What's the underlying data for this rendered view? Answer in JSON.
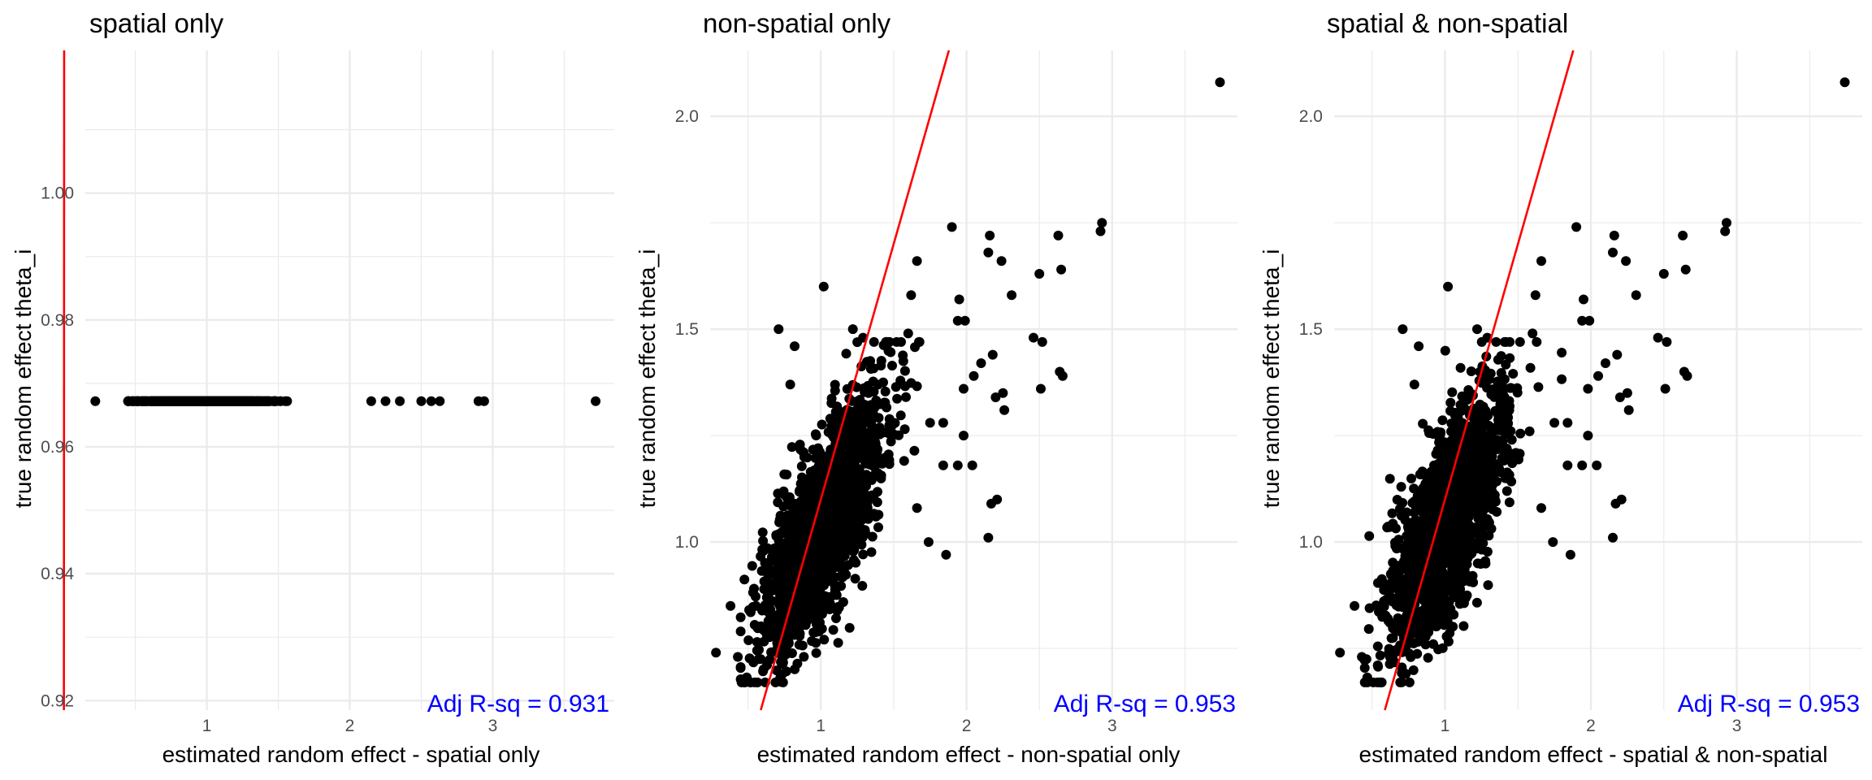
{
  "colors": {
    "points": "#000000",
    "reference_line": "#ff0000",
    "annotation": "#0000ff",
    "grid": "#ebebeb"
  },
  "chart_data": [
    {
      "type": "scatter",
      "title": "spatial only",
      "xlabel": "estimated random effect - spatial only",
      "ylabel": "true random effect theta_i",
      "annotation": "Adj R-sq = 0.931",
      "xlim": [
        0.15,
        3.85
      ],
      "ylim": [
        0.9185,
        1.0225
      ],
      "xticks": [
        1,
        2,
        3
      ],
      "yticks": [
        0.92,
        0.94,
        0.96,
        0.98,
        1.0
      ],
      "ytick_labels": [
        "0.92",
        "0.94",
        "0.96",
        "0.98",
        "1.00"
      ],
      "reference_line": {
        "slope": 54.9,
        "intercept": 0.9134
      },
      "outlier_points": [
        [
          0.22,
          0.9672
        ],
        [
          2.15,
          0.9672
        ],
        [
          2.25,
          0.9672
        ],
        [
          2.35,
          0.9672
        ],
        [
          2.5,
          0.9672
        ],
        [
          2.57,
          0.9672
        ],
        [
          2.63,
          0.9672
        ],
        [
          2.9,
          0.9672
        ],
        [
          2.94,
          0.9672
        ],
        [
          3.72,
          0.9672
        ]
      ],
      "point_cloud": {
        "n": 1000,
        "x_mean": 1.0,
        "x_sd": 0.22,
        "x_min": 0.45,
        "x_max": 2.05,
        "y_mean": 0.9672,
        "y_sd": 0.0,
        "y_min": 0.9672,
        "y_max": 0.9672,
        "corr": 0.0
      },
      "grid": true
    },
    {
      "type": "scatter",
      "title": "non-spatial only",
      "xlabel": "estimated random effect - non-spatial only",
      "ylabel": "true random effect theta_i",
      "annotation": "Adj R-sq = 0.953",
      "xlim": [
        0.24,
        3.86
      ],
      "ylim": [
        0.605,
        2.155
      ],
      "xticks": [
        1,
        2,
        3
      ],
      "yticks": [
        1.0,
        1.5,
        2.0
      ],
      "ytick_labels": [
        "1.0",
        "1.5",
        "2.0"
      ],
      "reference_line": {
        "slope": 1.2,
        "intercept": -0.1
      },
      "outlier_points": [
        [
          3.74,
          2.08
        ],
        [
          2.93,
          1.75
        ],
        [
          2.92,
          1.73
        ],
        [
          2.63,
          1.72
        ],
        [
          1.9,
          1.74
        ],
        [
          2.16,
          1.72
        ],
        [
          2.15,
          1.68
        ],
        [
          2.24,
          1.66
        ],
        [
          1.66,
          1.66
        ],
        [
          2.65,
          1.64
        ],
        [
          2.5,
          1.63
        ],
        [
          2.31,
          1.58
        ],
        [
          2.46,
          1.48
        ],
        [
          2.52,
          1.47
        ],
        [
          2.64,
          1.4
        ],
        [
          2.66,
          1.39
        ],
        [
          2.18,
          1.44
        ],
        [
          2.1,
          1.42
        ],
        [
          2.05,
          1.39
        ],
        [
          2.2,
          1.34
        ],
        [
          2.26,
          1.31
        ],
        [
          2.51,
          1.36
        ],
        [
          1.98,
          1.36
        ],
        [
          1.98,
          1.25
        ],
        [
          1.94,
          1.18
        ],
        [
          2.04,
          1.18
        ],
        [
          2.21,
          1.1
        ],
        [
          2.17,
          1.09
        ],
        [
          2.15,
          1.01
        ],
        [
          1.86,
          0.97
        ],
        [
          1.84,
          1.18
        ],
        [
          1.94,
          1.52
        ],
        [
          1.99,
          1.52
        ],
        [
          1.95,
          1.57
        ],
        [
          1.62,
          1.58
        ],
        [
          1.6,
          1.49
        ],
        [
          1.22,
          1.5
        ],
        [
          1.02,
          1.6
        ],
        [
          0.71,
          1.5
        ],
        [
          0.79,
          1.37
        ],
        [
          0.82,
          1.46
        ],
        [
          1.29,
          1.48
        ],
        [
          0.28,
          0.74
        ],
        [
          0.38,
          0.85
        ],
        [
          0.43,
          0.73
        ],
        [
          1.66,
          1.08
        ],
        [
          1.75,
          1.28
        ],
        [
          1.84,
          1.28
        ],
        [
          2.25,
          1.35
        ],
        [
          1.74,
          1.0
        ]
      ],
      "point_cloud": {
        "n": 1600,
        "x_mean": 1.02,
        "x_sd": 0.21,
        "x_min": 0.45,
        "x_max": 1.8,
        "y_mean": 1.04,
        "y_sd": 0.155,
        "y_min": 0.67,
        "y_max": 1.47,
        "corr": 0.72
      },
      "grid": true
    },
    {
      "type": "scatter",
      "title": "spatial & non-spatial",
      "xlabel": "estimated random effect - spatial & non-spatial",
      "ylabel": "true random effect theta_i",
      "annotation": "Adj R-sq = 0.953",
      "xlim": [
        0.24,
        3.86
      ],
      "ylim": [
        0.605,
        2.155
      ],
      "xticks": [
        1,
        2,
        3
      ],
      "yticks": [
        1.0,
        1.5,
        2.0
      ],
      "ytick_labels": [
        "1.0",
        "1.5",
        "2.0"
      ],
      "reference_line": {
        "slope": 1.2,
        "intercept": -0.1
      },
      "outlier_points": [
        [
          3.74,
          2.08
        ],
        [
          2.93,
          1.75
        ],
        [
          2.92,
          1.73
        ],
        [
          2.63,
          1.72
        ],
        [
          1.9,
          1.74
        ],
        [
          2.16,
          1.72
        ],
        [
          2.15,
          1.68
        ],
        [
          2.24,
          1.66
        ],
        [
          1.66,
          1.66
        ],
        [
          2.65,
          1.64
        ],
        [
          2.5,
          1.63
        ],
        [
          2.31,
          1.58
        ],
        [
          2.46,
          1.48
        ],
        [
          2.52,
          1.47
        ],
        [
          2.64,
          1.4
        ],
        [
          2.66,
          1.39
        ],
        [
          2.18,
          1.44
        ],
        [
          2.1,
          1.42
        ],
        [
          2.05,
          1.39
        ],
        [
          2.2,
          1.34
        ],
        [
          2.26,
          1.31
        ],
        [
          2.51,
          1.36
        ],
        [
          1.98,
          1.36
        ],
        [
          1.98,
          1.25
        ],
        [
          1.94,
          1.18
        ],
        [
          2.04,
          1.18
        ],
        [
          2.21,
          1.1
        ],
        [
          2.17,
          1.09
        ],
        [
          2.15,
          1.01
        ],
        [
          1.86,
          0.97
        ],
        [
          1.84,
          1.18
        ],
        [
          1.94,
          1.52
        ],
        [
          1.99,
          1.52
        ],
        [
          1.95,
          1.57
        ],
        [
          1.62,
          1.58
        ],
        [
          1.6,
          1.49
        ],
        [
          1.22,
          1.5
        ],
        [
          1.02,
          1.6
        ],
        [
          0.71,
          1.5
        ],
        [
          0.79,
          1.37
        ],
        [
          0.82,
          1.46
        ],
        [
          1.29,
          1.48
        ],
        [
          0.28,
          0.74
        ],
        [
          0.38,
          0.85
        ],
        [
          0.43,
          0.73
        ],
        [
          1.66,
          1.08
        ],
        [
          1.75,
          1.28
        ],
        [
          1.84,
          1.28
        ],
        [
          2.25,
          1.35
        ],
        [
          1.74,
          1.0
        ]
      ],
      "point_cloud": {
        "n": 1600,
        "x_mean": 1.02,
        "x_sd": 0.21,
        "x_min": 0.45,
        "x_max": 1.8,
        "y_mean": 1.04,
        "y_sd": 0.155,
        "y_min": 0.67,
        "y_max": 1.47,
        "corr": 0.72
      },
      "grid": true
    }
  ]
}
